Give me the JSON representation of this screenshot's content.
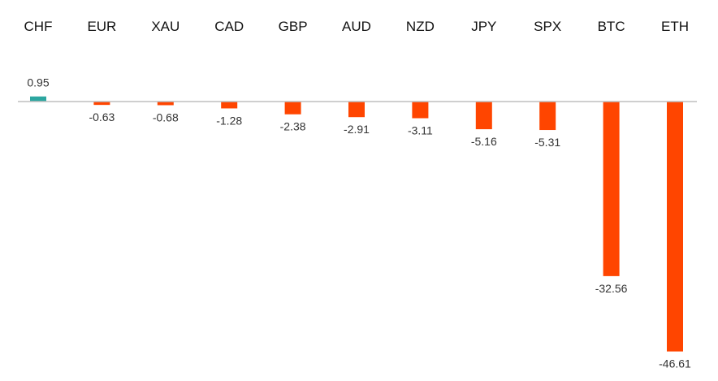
{
  "chart_data": {
    "type": "bar",
    "categories": [
      "CHF",
      "EUR",
      "XAU",
      "CAD",
      "GBP",
      "AUD",
      "NZD",
      "JPY",
      "SPX",
      "BTC",
      "ETH"
    ],
    "values": [
      0.95,
      -0.63,
      -0.68,
      -1.28,
      -2.38,
      -2.91,
      -3.11,
      -5.16,
      -5.31,
      -32.56,
      -46.61
    ],
    "value_labels": [
      "0.95",
      "-0.63",
      "-0.68",
      "-1.28",
      "-2.38",
      "-2.91",
      "-3.11",
      "-5.16",
      "-5.31",
      "-32.56",
      "-46.61"
    ],
    "title": "",
    "xlabel": "",
    "ylabel": "",
    "ylim": [
      -47,
      1
    ],
    "grid": false,
    "legend": "none",
    "category_axis_position": "top",
    "colors": {
      "positive": "#2ca6a0",
      "negative": "#ff4500",
      "axis": "#bfbfbf"
    }
  }
}
